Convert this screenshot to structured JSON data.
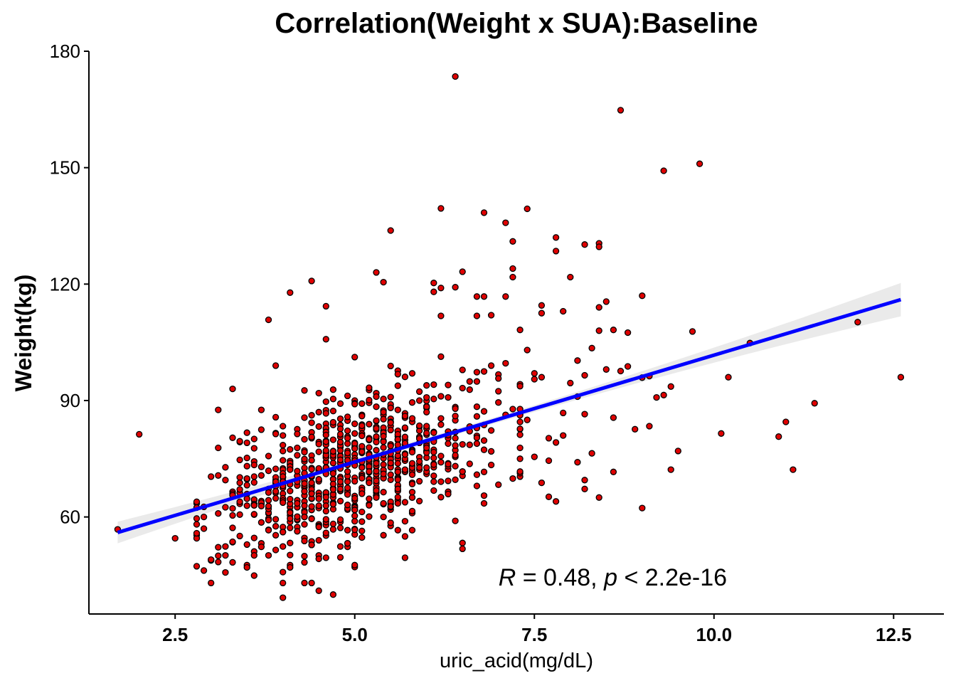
{
  "chart_data": {
    "type": "scatter",
    "title": "Correlation(Weight x SUA):Baseline",
    "xlabel": "uric_acid(mg/dL)",
    "ylabel": "Weight(kg)",
    "xlim": [
      1.3,
      13.2
    ],
    "ylim": [
      35,
      180
    ],
    "xticks": [
      2.5,
      5.0,
      7.5,
      10.0,
      12.5
    ],
    "xtick_labels": [
      "2.5",
      "5.0",
      "7.5",
      "10.0",
      "12.5"
    ],
    "yticks": [
      60,
      90,
      120,
      150,
      180
    ],
    "ytick_labels": [
      "60",
      "90",
      "120",
      "150",
      "180"
    ],
    "grid": false,
    "legend": "none",
    "annotation": {
      "r_symbol": "R",
      "r_text": " = 0.48, ",
      "p_symbol": "p",
      "p_text": " < 2.2e-16",
      "x": 7.0,
      "y": 44.5
    },
    "regression": {
      "x_start": 1.7,
      "x_end": 12.6,
      "y_start": 56.0,
      "y_end": 116.0,
      "ci_start": 2.8,
      "ci_mid": 0.8,
      "ci_end": 4.3
    },
    "colors": {
      "point_fill": "#e00000",
      "point_stroke": "#000000",
      "line": "#0000ff",
      "ci_band": "#e6e6e6"
    },
    "outliers": [
      [
        6.4,
        173.5
      ],
      [
        8.7,
        164.8
      ],
      [
        9.8,
        151.0
      ],
      [
        9.3,
        149.2
      ],
      [
        7.4,
        139.4
      ],
      [
        6.2,
        139.5
      ],
      [
        6.8,
        138.4
      ],
      [
        7.1,
        135.8
      ],
      [
        5.5,
        133.8
      ],
      [
        7.8,
        132.0
      ],
      [
        7.2,
        131.0
      ],
      [
        8.2,
        130.2
      ],
      [
        8.4,
        130.5
      ],
      [
        8.4,
        129.6
      ],
      [
        7.8,
        128.5
      ],
      [
        6.5,
        123.2
      ],
      [
        5.3,
        123.0
      ],
      [
        7.2,
        124.0
      ],
      [
        7.2,
        121.8
      ],
      [
        8.0,
        121.8
      ],
      [
        4.4,
        120.8
      ],
      [
        5.4,
        120.5
      ],
      [
        6.1,
        120.3
      ],
      [
        6.2,
        119.0
      ],
      [
        6.4,
        119.2
      ],
      [
        4.1,
        117.8
      ],
      [
        6.1,
        118.0
      ],
      [
        6.7,
        116.8
      ],
      [
        6.8,
        116.8
      ],
      [
        7.1,
        116.8
      ],
      [
        9.0,
        117.0
      ],
      [
        8.5,
        115.5
      ],
      [
        4.6,
        114.3
      ],
      [
        8.4,
        114.0
      ],
      [
        7.6,
        114.5
      ],
      [
        7.9,
        113.0
      ],
      [
        6.2,
        111.8
      ],
      [
        6.7,
        111.8
      ],
      [
        7.6,
        112.5
      ],
      [
        3.8,
        110.8
      ],
      [
        6.9,
        112.0
      ],
      [
        2.0,
        81.3
      ],
      [
        1.7,
        56.8
      ],
      [
        2.5,
        54.5
      ],
      [
        10.5,
        104.8
      ],
      [
        12.0,
        110.2
      ],
      [
        12.6,
        96.0
      ],
      [
        10.2,
        96.0
      ],
      [
        9.7,
        107.8
      ],
      [
        11.4,
        89.3
      ],
      [
        11.0,
        84.5
      ],
      [
        10.9,
        80.7
      ],
      [
        10.1,
        81.5
      ],
      [
        11.1,
        72.2
      ],
      [
        9.5,
        77.0
      ],
      [
        9.4,
        72.2
      ],
      [
        9.0,
        62.3
      ],
      [
        8.6,
        71.6
      ],
      [
        8.4,
        65.0
      ],
      [
        4.0,
        39.2
      ],
      [
        4.7,
        40.0
      ],
      [
        3.9,
        99.0
      ],
      [
        3.3,
        93.0
      ],
      [
        3.1,
        87.6
      ],
      [
        3.7,
        87.6
      ],
      [
        4.6,
        105.8
      ],
      [
        4.5,
        41.0
      ],
      [
        5.7,
        49.5
      ],
      [
        4.3,
        48.3
      ],
      [
        3.1,
        50.0
      ],
      [
        3.0,
        48.8
      ],
      [
        6.5,
        51.8
      ],
      [
        6.5,
        53.3
      ],
      [
        9.1,
        83.4
      ],
      [
        9.2,
        90.8
      ],
      [
        9.3,
        91.4
      ],
      [
        9.4,
        93.6
      ],
      [
        9.1,
        96.3
      ],
      [
        9.0,
        95.9
      ],
      [
        8.8,
        98.8
      ],
      [
        8.9,
        82.6
      ],
      [
        8.7,
        97.6
      ],
      [
        8.6,
        85.6
      ],
      [
        8.5,
        98.0
      ],
      [
        8.6,
        108.2
      ],
      [
        8.8,
        107.5
      ],
      [
        8.4,
        108.0
      ],
      [
        8.3,
        103.5
      ],
      [
        8.1,
        100.3
      ],
      [
        8.2,
        96.5
      ],
      [
        8.0,
        94.5
      ],
      [
        8.1,
        91.0
      ],
      [
        8.2,
        86.5
      ],
      [
        8.3,
        76.4
      ],
      [
        8.2,
        69.5
      ],
      [
        8.2,
        67.2
      ],
      [
        8.1,
        74.1
      ],
      [
        7.9,
        86.8
      ],
      [
        7.9,
        81.0
      ],
      [
        7.7,
        80.3
      ],
      [
        7.8,
        79.2
      ],
      [
        7.7,
        74.5
      ],
      [
        7.5,
        75.5
      ],
      [
        7.6,
        68.8
      ],
      [
        7.7,
        65.2
      ],
      [
        7.8,
        64.0
      ],
      [
        7.3,
        75.0
      ],
      [
        7.4,
        85.0
      ],
      [
        7.5,
        95.5
      ],
      [
        7.5,
        97.0
      ],
      [
        7.6,
        96.0
      ],
      [
        7.4,
        103.0
      ],
      [
        7.3,
        108.2
      ]
    ],
    "core": {
      "seed": 7,
      "count": 820,
      "x_min": 2.8,
      "x_max": 7.3,
      "x_mean": 5.0,
      "x_sd": 1.0,
      "y_sd": 9.5,
      "y_min": 43,
      "y_max": 107
    },
    "point_radius": 4
  }
}
